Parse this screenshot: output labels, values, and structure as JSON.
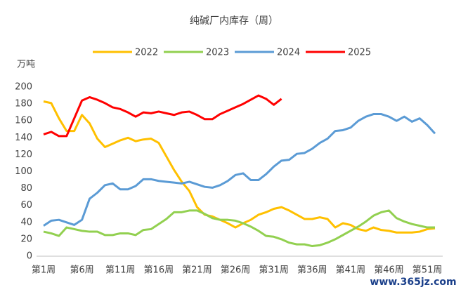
{
  "chart_data": {
    "type": "line",
    "title": "纯碱厂内库存（周）",
    "y_axis_label": "万吨",
    "watermark": "www.365jz.com",
    "categories": [
      "第1周",
      null,
      null,
      null,
      null,
      "第6周",
      null,
      null,
      null,
      null,
      "第11周",
      null,
      null,
      null,
      null,
      "第16周",
      null,
      null,
      null,
      null,
      "第21周",
      null,
      null,
      null,
      null,
      "第26周",
      null,
      null,
      null,
      null,
      "第31周",
      null,
      null,
      null,
      null,
      "第36周",
      null,
      null,
      null,
      null,
      "第41周",
      null,
      null,
      null,
      null,
      "第46周",
      null,
      null,
      null,
      null,
      "第51周",
      null
    ],
    "series": [
      {
        "name": "2022",
        "color": "#ffc000",
        "values": [
          183,
          181,
          163,
          148,
          148,
          167,
          157,
          139,
          129,
          133,
          137,
          140,
          136,
          138,
          139,
          134,
          118,
          102,
          88,
          77,
          58,
          49,
          47,
          43,
          39,
          34,
          39,
          43,
          49,
          52,
          56,
          58,
          54,
          49,
          44,
          44,
          46,
          44,
          34,
          39,
          37,
          32,
          30,
          34,
          31,
          30,
          28,
          28,
          28,
          29,
          32,
          33
        ]
      },
      {
        "name": "2023",
        "color": "#92d050",
        "values": [
          29,
          27,
          24,
          34,
          32,
          30,
          29,
          29,
          25,
          25,
          27,
          27,
          25,
          31,
          32,
          38,
          44,
          52,
          52,
          54,
          54,
          50,
          45,
          43,
          43,
          42,
          39,
          35,
          30,
          24,
          23,
          20,
          16,
          14,
          14,
          12,
          13,
          16,
          20,
          25,
          30,
          35,
          41,
          48,
          52,
          54,
          45,
          41,
          38,
          36,
          34,
          34
        ]
      },
      {
        "name": "2024",
        "color": "#5b9bd5",
        "values": [
          36,
          42,
          43,
          40,
          37,
          43,
          68,
          75,
          84,
          86,
          79,
          79,
          83,
          91,
          91,
          89,
          88,
          87,
          86,
          88,
          85,
          82,
          81,
          84,
          89,
          96,
          98,
          90,
          90,
          97,
          106,
          113,
          114,
          121,
          122,
          127,
          134,
          139,
          148,
          149,
          152,
          160,
          165,
          168,
          168,
          165,
          160,
          165,
          159,
          163,
          155,
          145
        ]
      },
      {
        "name": "2025",
        "color": "#ff0000",
        "values": [
          144,
          147,
          142,
          142,
          163,
          184,
          188,
          185,
          181,
          176,
          174,
          170,
          165,
          170,
          169,
          171,
          169,
          167,
          170,
          171,
          167,
          162,
          162,
          168,
          172,
          176,
          180,
          185,
          190,
          186,
          179,
          186,
          null,
          null,
          null,
          null,
          null,
          null,
          null,
          null,
          null,
          null,
          null,
          null,
          null,
          null,
          null,
          null,
          null,
          null,
          null,
          null
        ]
      }
    ],
    "ylim": [
      0,
      200
    ],
    "yticks": [
      0,
      20,
      40,
      60,
      80,
      100,
      120,
      140,
      160,
      180,
      200
    ],
    "grid": false,
    "legend": "top"
  }
}
